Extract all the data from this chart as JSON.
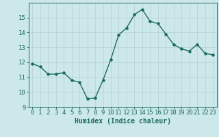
{
  "x": [
    0,
    1,
    2,
    3,
    4,
    5,
    6,
    7,
    8,
    9,
    10,
    11,
    12,
    13,
    14,
    15,
    16,
    17,
    18,
    19,
    20,
    21,
    22,
    23
  ],
  "y": [
    11.9,
    11.7,
    11.2,
    11.2,
    11.3,
    10.8,
    10.65,
    9.55,
    9.6,
    10.8,
    12.2,
    13.85,
    14.3,
    15.2,
    15.55,
    14.75,
    14.6,
    13.9,
    13.2,
    12.9,
    12.75,
    13.2,
    12.6,
    12.5
  ],
  "line_color": "#1a6b5a",
  "marker": "o",
  "markersize": 2.2,
  "linewidth": 1.0,
  "bg_color": "#cde8ea",
  "grid_color": "#b8d4d6",
  "xlabel": "Humidex (Indice chaleur)",
  "xlim": [
    -0.5,
    23.5
  ],
  "ylim": [
    9,
    16
  ],
  "yticks": [
    9,
    10,
    11,
    12,
    13,
    14,
    15
  ],
  "xticks": [
    0,
    1,
    2,
    3,
    4,
    5,
    6,
    7,
    8,
    9,
    10,
    11,
    12,
    13,
    14,
    15,
    16,
    17,
    18,
    19,
    20,
    21,
    22,
    23
  ],
  "xlabel_fontsize": 7.0,
  "tick_fontsize": 6.5,
  "tick_color": "#1a6b5a"
}
